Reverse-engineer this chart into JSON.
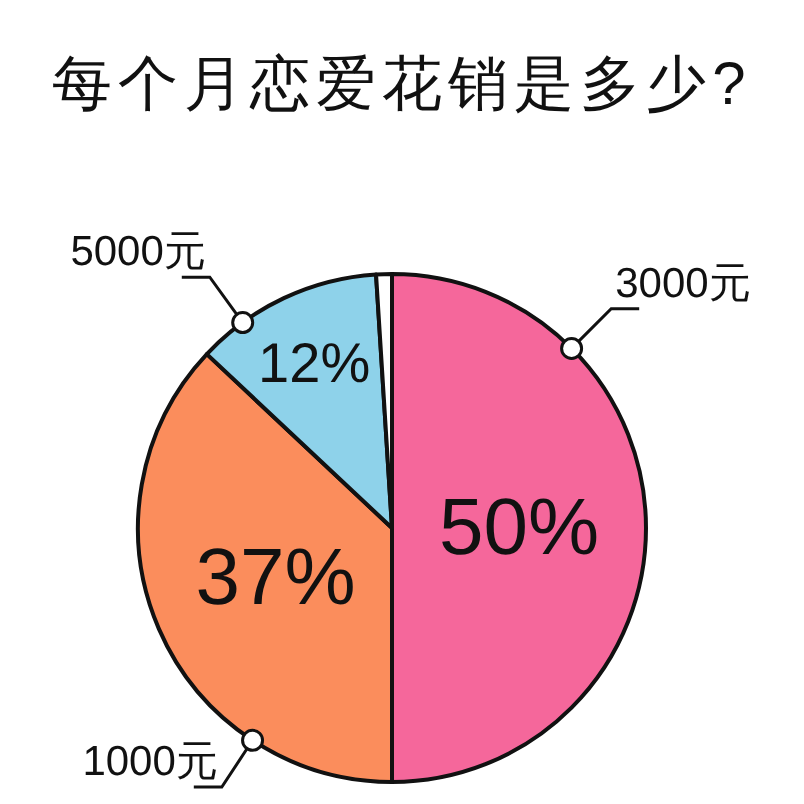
{
  "chart_data": {
    "type": "pie",
    "title": "每个月恋爱花销是多少?",
    "categories": [
      "3000元",
      "1000元",
      "5000元",
      null
    ],
    "values": [
      50,
      37,
      12,
      1
    ],
    "colors": [
      "#f5679b",
      "#fb8d5c",
      "#8ed2ea",
      "#ffffff"
    ],
    "value_labels": [
      "50%",
      "37%",
      "12%",
      null
    ]
  }
}
